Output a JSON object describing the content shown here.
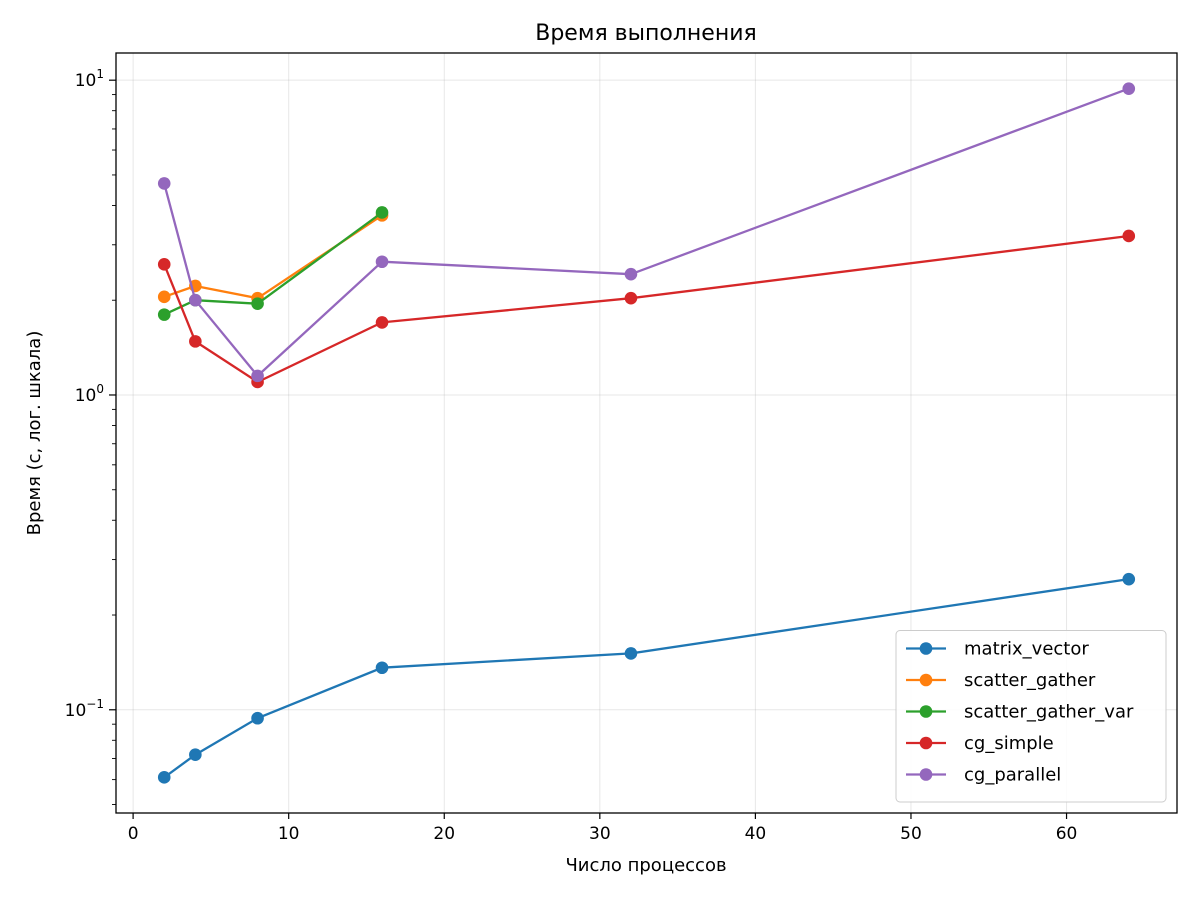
{
  "chart_data": {
    "type": "line",
    "title": "Время выполнения",
    "xlabel": "Число процессов",
    "ylabel": "Время (с, лог. шкала)",
    "x_scale": "linear",
    "y_scale": "log",
    "xlim": [
      -1.1,
      67.1
    ],
    "ylim": [
      0.047,
      12.2
    ],
    "x_ticks": [
      0,
      10,
      20,
      30,
      40,
      50,
      60
    ],
    "y_ticks": [
      0.1,
      1,
      10
    ],
    "y_tick_labels": [
      {
        "base": "10",
        "exp": "−1"
      },
      {
        "base": "10",
        "exp": "0"
      },
      {
        "base": "10",
        "exp": "1"
      }
    ],
    "grid": true,
    "legend_position": "bottom-right",
    "series": [
      {
        "name": "matrix_vector",
        "color": "#1f77b4",
        "x": [
          2,
          4,
          8,
          16,
          32,
          64
        ],
        "y": [
          0.061,
          0.072,
          0.094,
          0.136,
          0.151,
          0.26
        ]
      },
      {
        "name": "scatter_gather",
        "color": "#ff7f0e",
        "x": [
          2,
          4,
          8,
          16
        ],
        "y": [
          2.05,
          2.22,
          2.03,
          3.72
        ]
      },
      {
        "name": "scatter_gather_var",
        "color": "#2ca02c",
        "x": [
          2,
          4,
          8,
          16
        ],
        "y": [
          1.8,
          2.0,
          1.95,
          3.8
        ]
      },
      {
        "name": "cg_simple",
        "color": "#d62728",
        "x": [
          2,
          4,
          8,
          16,
          32,
          64
        ],
        "y": [
          2.6,
          1.48,
          1.1,
          1.7,
          2.03,
          3.2
        ]
      },
      {
        "name": "cg_parallel",
        "color": "#9467bd",
        "x": [
          2,
          4,
          8,
          16,
          32,
          64
        ],
        "y": [
          4.7,
          2.0,
          1.15,
          2.65,
          2.42,
          9.4
        ]
      }
    ]
  }
}
